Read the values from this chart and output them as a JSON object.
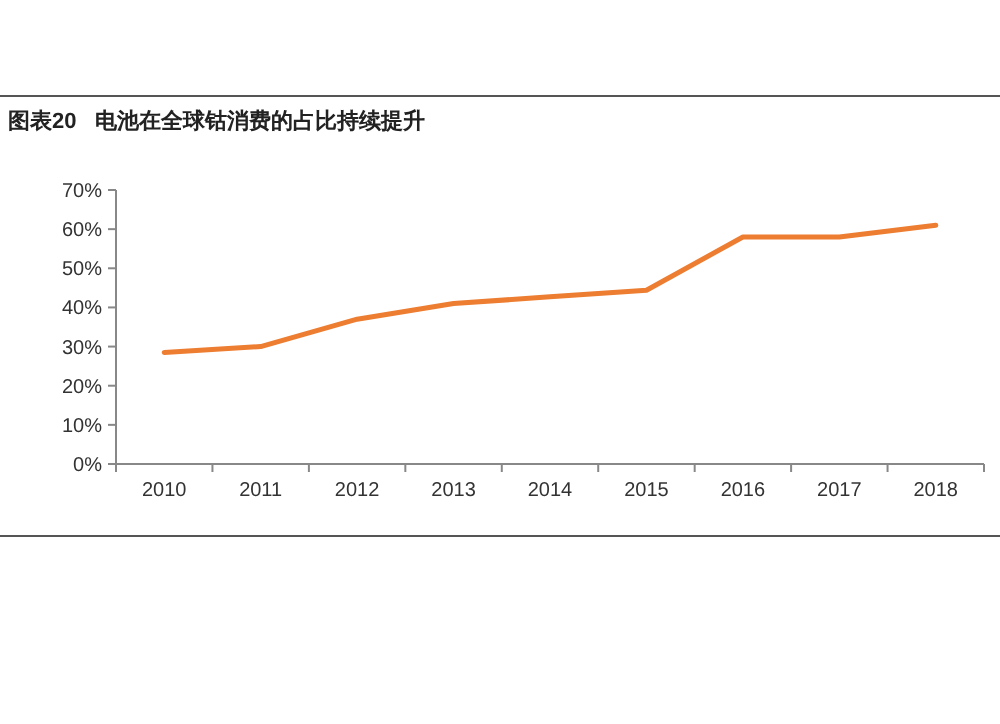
{
  "chart_data": {
    "type": "line",
    "title": "图表20   电池在全球钴消费的占比持续提升",
    "categories": [
      "2010",
      "2011",
      "2012",
      "2013",
      "2014",
      "2015",
      "2016",
      "2017",
      "2018"
    ],
    "series": [
      {
        "color": "#ed7d31",
        "values": [
          28.5,
          30,
          37,
          41,
          42.7,
          44.4,
          58,
          58,
          61
        ]
      }
    ],
    "ylim": [
      0,
      70
    ],
    "yticks": [
      {
        "value": 0,
        "label": "0%"
      },
      {
        "value": 10,
        "label": "10%"
      },
      {
        "value": 20,
        "label": "20%"
      },
      {
        "value": 30,
        "label": "30%"
      },
      {
        "value": 40,
        "label": "40%"
      },
      {
        "value": 50,
        "label": "50%"
      },
      {
        "value": 60,
        "label": "60%"
      },
      {
        "value": 70,
        "label": "70%"
      }
    ],
    "grid": false,
    "marker": "none",
    "line_style": "solid"
  }
}
